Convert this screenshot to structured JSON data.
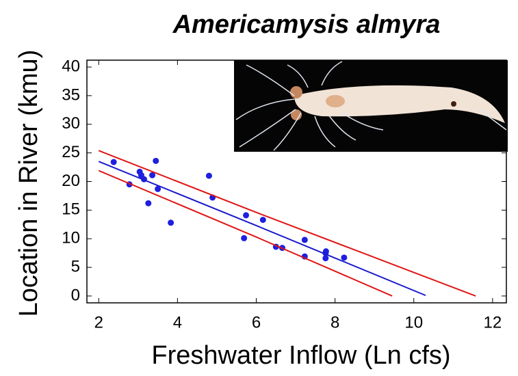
{
  "chart_data": {
    "type": "scatter",
    "title": "Americamysis almyra",
    "x_label": "Freshwater Inflow (Ln cfs)",
    "y_label": "Location in River (kmu)",
    "xlim": [
      1.7,
      12.35
    ],
    "ylim": [
      -1.2,
      41.2
    ],
    "xticks": [
      2,
      4,
      6,
      8,
      10,
      12
    ],
    "yticks": [
      0,
      5,
      10,
      15,
      20,
      25,
      30,
      35,
      40
    ],
    "series": [
      {
        "style": "markers",
        "color": "#1f1fe0",
        "x": [
          2.38,
          2.78,
          3.04,
          3.08,
          3.15,
          3.26,
          3.36,
          3.45,
          3.5,
          3.83,
          4.8,
          4.89,
          5.69,
          5.74,
          6.17,
          6.5,
          6.66,
          7.23,
          7.23,
          7.76,
          7.77,
          7.76,
          8.23
        ],
        "values": [
          23.4,
          19.5,
          21.7,
          21.1,
          20.4,
          16.2,
          21.1,
          23.6,
          18.7,
          12.8,
          21.0,
          17.2,
          10.1,
          14.1,
          13.3,
          8.6,
          8.4,
          9.8,
          6.9,
          7.5,
          7.8,
          6.6,
          6.7
        ]
      },
      {
        "style": "line",
        "color": "#1a1acc",
        "x": [
          2,
          6,
          10.3
        ],
        "values": [
          23.5,
          12.3,
          0.1
        ]
      },
      {
        "style": "line",
        "color": "#e01515",
        "x": [
          2,
          6,
          11.57
        ],
        "values": [
          25.4,
          14.6,
          0
        ]
      },
      {
        "style": "line",
        "color": "#e01515",
        "x": [
          2,
          6,
          9.45
        ],
        "values": [
          21.9,
          10.3,
          0
        ]
      }
    ]
  }
}
